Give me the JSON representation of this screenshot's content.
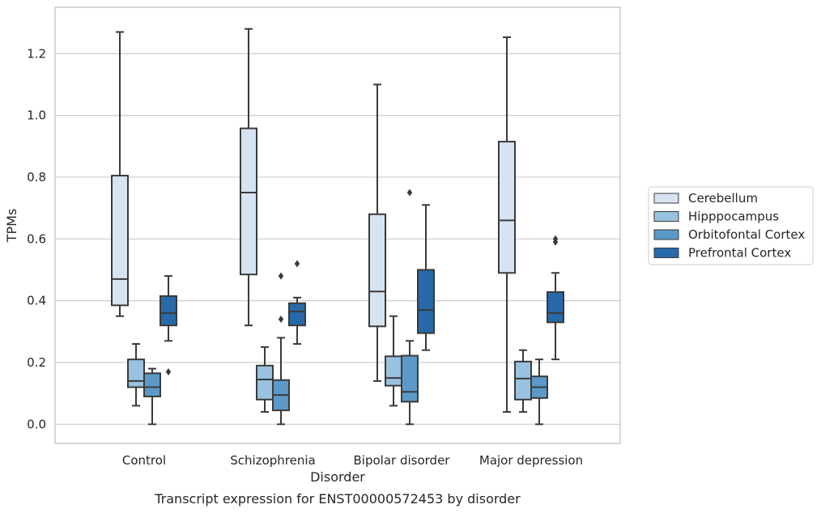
{
  "caption": "Transcript expression for ENST00000572453 by disorder",
  "chart_data": {
    "type": "box",
    "xlabel": "Disorder",
    "ylabel": "TPMs",
    "categories": [
      "Control",
      "Schizophrenia",
      "Bipolar disorder",
      "Major depression"
    ],
    "ylim": [
      -0.062,
      1.35
    ],
    "yticks": [
      0.0,
      0.2,
      0.4,
      0.6,
      0.8,
      1.0,
      1.2
    ],
    "ytick_labels": [
      "0.0",
      "0.2",
      "0.4",
      "0.6",
      "0.8",
      "1.0",
      "1.2"
    ],
    "grid": "horizontal",
    "legend_placement": "outside-right",
    "series": [
      {
        "name": "Cerebellum",
        "color": "#d6e3f1",
        "boxes": [
          {
            "whislo": 0.35,
            "q1": 0.385,
            "med": 0.47,
            "q3": 0.805,
            "whishi": 1.27,
            "fliers": []
          },
          {
            "whislo": 0.32,
            "q1": 0.485,
            "med": 0.75,
            "q3": 0.958,
            "whishi": 1.28,
            "fliers": []
          },
          {
            "whislo": 0.14,
            "q1": 0.317,
            "med": 0.43,
            "q3": 0.68,
            "whishi": 1.1,
            "fliers": []
          },
          {
            "whislo": 0.04,
            "q1": 0.49,
            "med": 0.66,
            "q3": 0.915,
            "whishi": 1.253,
            "fliers": []
          }
        ]
      },
      {
        "name": "Hipppocampus",
        "color": "#98c2df",
        "boxes": [
          {
            "whislo": 0.06,
            "q1": 0.12,
            "med": 0.14,
            "q3": 0.21,
            "whishi": 0.26,
            "fliers": []
          },
          {
            "whislo": 0.04,
            "q1": 0.08,
            "med": 0.145,
            "q3": 0.19,
            "whishi": 0.25,
            "fliers": []
          },
          {
            "whislo": 0.06,
            "q1": 0.125,
            "med": 0.15,
            "q3": 0.22,
            "whishi": 0.35,
            "fliers": []
          },
          {
            "whislo": 0.04,
            "q1": 0.08,
            "med": 0.148,
            "q3": 0.203,
            "whishi": 0.24,
            "fliers": []
          }
        ]
      },
      {
        "name": "Orbitofontal Cortex",
        "color": "#5b9ac8",
        "boxes": [
          {
            "whislo": 0.0,
            "q1": 0.09,
            "med": 0.12,
            "q3": 0.165,
            "whishi": 0.18,
            "fliers": []
          },
          {
            "whislo": 0.0,
            "q1": 0.045,
            "med": 0.095,
            "q3": 0.143,
            "whishi": 0.28,
            "fliers": [
              0.48,
              0.34
            ]
          },
          {
            "whislo": 0.0,
            "q1": 0.073,
            "med": 0.105,
            "q3": 0.222,
            "whishi": 0.27,
            "fliers": [
              0.75
            ]
          },
          {
            "whislo": 0.0,
            "q1": 0.085,
            "med": 0.12,
            "q3": 0.155,
            "whishi": 0.21,
            "fliers": []
          }
        ]
      },
      {
        "name": "Prefrontal Cortex",
        "color": "#2769a9",
        "boxes": [
          {
            "whislo": 0.27,
            "q1": 0.32,
            "med": 0.36,
            "q3": 0.415,
            "whishi": 0.48,
            "fliers": [
              0.17
            ]
          },
          {
            "whislo": 0.26,
            "q1": 0.32,
            "med": 0.365,
            "q3": 0.392,
            "whishi": 0.41,
            "fliers": [
              0.52
            ]
          },
          {
            "whislo": 0.24,
            "q1": 0.295,
            "med": 0.37,
            "q3": 0.5,
            "whishi": 0.71,
            "fliers": []
          },
          {
            "whislo": 0.21,
            "q1": 0.33,
            "med": 0.36,
            "q3": 0.428,
            "whishi": 0.49,
            "fliers": [
              0.59,
              0.6
            ]
          }
        ]
      }
    ]
  }
}
